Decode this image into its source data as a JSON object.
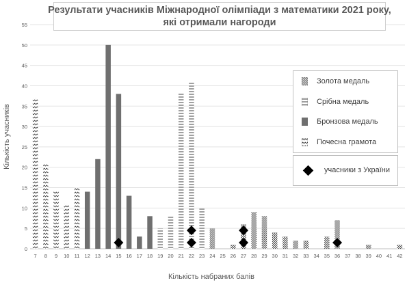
{
  "chart_data": {
    "type": "bar",
    "title_lines": [
      "Результати учасників Міжнародної олімпіади з математики 2021 року,",
      "які отримали нагороди"
    ],
    "xlabel": "Кількість набраних балів",
    "ylabel": "Кількість учасників",
    "ylim": [
      0,
      55
    ],
    "yticks": [
      0,
      5,
      10,
      15,
      20,
      25,
      30,
      35,
      40,
      45,
      50,
      55
    ],
    "grid": true,
    "legend_position": "right",
    "categories": [
      "7",
      "8",
      "9",
      "10",
      "11",
      "12",
      "13",
      "14",
      "15",
      "16",
      "17",
      "18",
      "19",
      "20",
      "21",
      "22",
      "23",
      "24",
      "25",
      "26",
      "27",
      "28",
      "29",
      "30",
      "31",
      "32",
      "33",
      "34",
      "35",
      "36",
      "37",
      "38",
      "39",
      "40",
      "41",
      "42"
    ],
    "series": [
      {
        "name": "Почесна грамота",
        "pattern": "honorable",
        "values": [
          37,
          21,
          14,
          11,
          15,
          0,
          0,
          0,
          0,
          0,
          0,
          0,
          0,
          0,
          0,
          0,
          0,
          0,
          0,
          0,
          0,
          0,
          0,
          0,
          0,
          0,
          0,
          0,
          0,
          0,
          0,
          0,
          0,
          0,
          0,
          0
        ]
      },
      {
        "name": "Бронзова медаль",
        "pattern": "bronze",
        "values": [
          0,
          0,
          0,
          0,
          0,
          14,
          22,
          50,
          38,
          13,
          3,
          8,
          0,
          0,
          0,
          0,
          0,
          0,
          0,
          0,
          0,
          0,
          0,
          0,
          0,
          0,
          0,
          0,
          0,
          0,
          0,
          0,
          0,
          0,
          0,
          0
        ]
      },
      {
        "name": "Срібна медаль",
        "pattern": "silver",
        "values": [
          0,
          0,
          0,
          0,
          0,
          0,
          0,
          0,
          0,
          0,
          0,
          0,
          5,
          8,
          38,
          41,
          10,
          0,
          0,
          0,
          0,
          0,
          0,
          0,
          0,
          0,
          0,
          0,
          0,
          0,
          0,
          0,
          0,
          0,
          0,
          0
        ]
      },
      {
        "name": "Золота медаль",
        "pattern": "gold",
        "values": [
          0,
          0,
          0,
          0,
          0,
          0,
          0,
          0,
          0,
          0,
          0,
          0,
          0,
          0,
          0,
          0,
          0,
          5,
          0,
          1,
          6,
          9,
          8,
          4,
          3,
          2,
          2,
          0,
          3,
          7,
          0,
          0,
          1,
          0,
          0,
          1
        ]
      }
    ],
    "markers": {
      "name": "учасники з України",
      "points": [
        {
          "x": "15",
          "y": 1.5
        },
        {
          "x": "22",
          "y": 1.5
        },
        {
          "x": "22",
          "y": 4.5
        },
        {
          "x": "27",
          "y": 1.5
        },
        {
          "x": "27",
          "y": 4.5
        },
        {
          "x": "36",
          "y": 1.5
        }
      ]
    },
    "legend_order": [
      "Золота медаль",
      "Срібна медаль",
      "Бронзова медаль",
      "Почесна грамота"
    ]
  }
}
